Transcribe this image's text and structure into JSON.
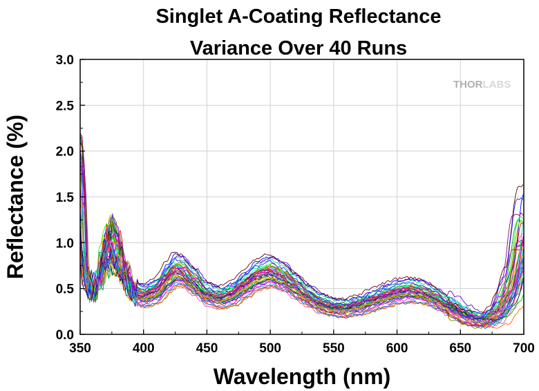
{
  "chart_data": {
    "type": "line",
    "title": [
      "Singlet A-Coating Reflectance",
      "Variance Over 40 Runs"
    ],
    "xlabel": "Wavelength (nm)",
    "ylabel": "Reflectance (%)",
    "xlim": [
      350,
      700
    ],
    "ylim": [
      0.0,
      3.0
    ],
    "xticks": [
      350,
      400,
      450,
      500,
      550,
      600,
      650,
      700
    ],
    "yticks": [
      "0.0",
      "0.5",
      "1.0",
      "1.5",
      "2.0",
      "2.5",
      "3.0"
    ],
    "grid": true,
    "legend": "none",
    "run_count": 40,
    "mean_curve": {
      "x": [
        350,
        355,
        360,
        365,
        370,
        375,
        380,
        385,
        390,
        395,
        400,
        410,
        420,
        425,
        430,
        440,
        450,
        460,
        470,
        480,
        490,
        500,
        510,
        520,
        530,
        540,
        550,
        560,
        570,
        580,
        590,
        600,
        610,
        620,
        630,
        640,
        650,
        660,
        670,
        680,
        690,
        700
      ],
      "y": [
        1.6,
        0.6,
        0.45,
        0.6,
        0.9,
        1.0,
        0.85,
        0.65,
        0.5,
        0.42,
        0.4,
        0.45,
        0.6,
        0.68,
        0.66,
        0.55,
        0.42,
        0.38,
        0.42,
        0.52,
        0.62,
        0.66,
        0.6,
        0.5,
        0.4,
        0.32,
        0.28,
        0.27,
        0.3,
        0.35,
        0.4,
        0.44,
        0.46,
        0.44,
        0.38,
        0.3,
        0.22,
        0.16,
        0.14,
        0.22,
        0.45,
        1.05
      ]
    },
    "series_colors": [
      "#ff0000",
      "#00a000",
      "#0000ff",
      "#ff00ff",
      "#00c0c0",
      "#ff8000",
      "#800080",
      "#008080",
      "#000080",
      "#808000",
      "#c00000",
      "#00ff00",
      "#4040ff",
      "#ff4090",
      "#a0a000",
      "#000000",
      "#ff6000",
      "#6000c0",
      "#00a060",
      "#c06000",
      "#0080ff",
      "#ff00a0",
      "#408000",
      "#8080ff",
      "#c000c0",
      "#00c000",
      "#ff3030",
      "#3030a0",
      "#a03000",
      "#00ffff",
      "#ffa000",
      "#a000ff",
      "#005000",
      "#ff60c0",
      "#3060ff",
      "#c0c000",
      "#600000",
      "#00d0a0",
      "#d000d0",
      "#2020ff"
    ]
  },
  "watermark": {
    "text_a": "THOR",
    "text_b": "LABS",
    "color_a": "#b0b0b0",
    "color_b": "#d8d8d8"
  }
}
